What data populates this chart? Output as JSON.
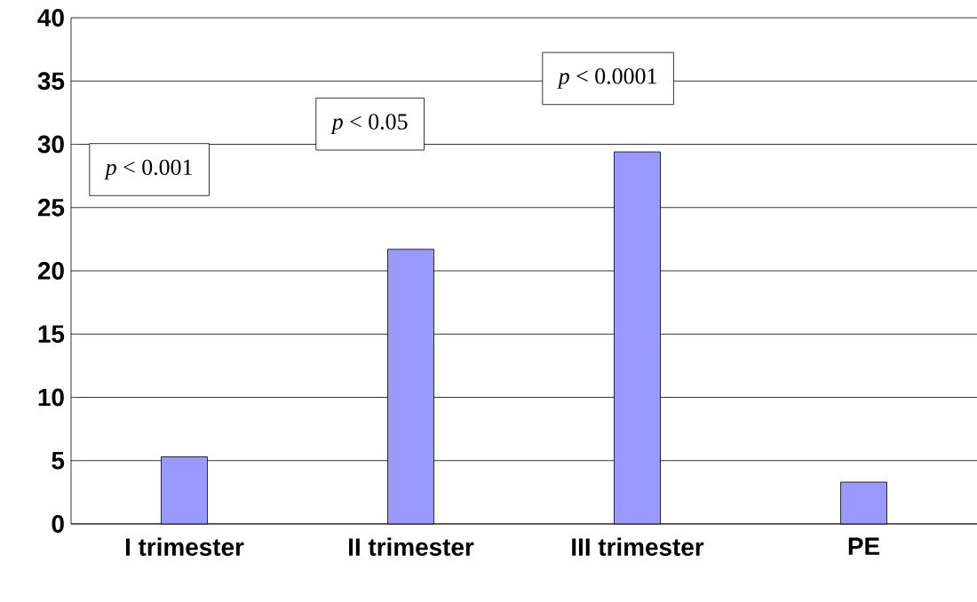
{
  "chart_data": {
    "type": "bar",
    "categories": [
      "I trimester",
      "II trimester",
      "III trimester",
      "PE"
    ],
    "values": [
      5.3,
      21.7,
      29.4,
      3.3
    ],
    "color": "#9999ff",
    "ylim": [
      0,
      40
    ],
    "yticks": [
      0,
      5,
      10,
      15,
      20,
      25,
      30,
      35,
      40
    ],
    "grid": "y",
    "annotations": [
      "*p* < 0.001",
      "*p* < 0.05",
      "*p* < 0.0001"
    ]
  }
}
